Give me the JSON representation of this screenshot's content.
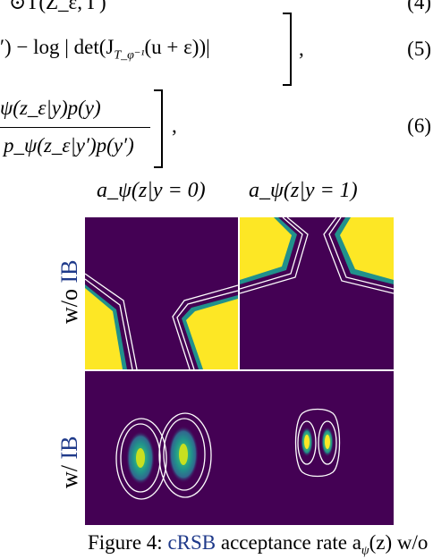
{
  "equations": {
    "eq4_fragment": "⊙T(Z_ε, Γ)",
    "eq4_number": "(4)",
    "eq5_text": "′) − log | det(J",
    "eq5_sub": "T_φ⁻¹",
    "eq5_tail": "(u + ε))|",
    "eq5_number": "(5)",
    "eq6_num": "ψ(z_ε|y)p(y)",
    "eq6_den": "p_ψ(z_ε|y′)p(y′)",
    "eq6_number": "(6)"
  },
  "figure": {
    "column_headers": [
      "a_ψ(z|y = 0)",
      "a_ψ(z|y = 1)"
    ],
    "row_labels": {
      "top_prefix": "w/o ",
      "top_highlight": "IB",
      "bottom_prefix": "w/ ",
      "bottom_highlight": "IB"
    },
    "colors": {
      "background": "#440154",
      "high": "#fde725",
      "mid": "#21918c",
      "contour": "#ffffff"
    },
    "caption": {
      "prefix": "Figure 4: ",
      "highlight": "cRSB",
      "suffix": " acceptance rate a",
      "sub": "ψ",
      "tail": "(z) w/o"
    }
  }
}
